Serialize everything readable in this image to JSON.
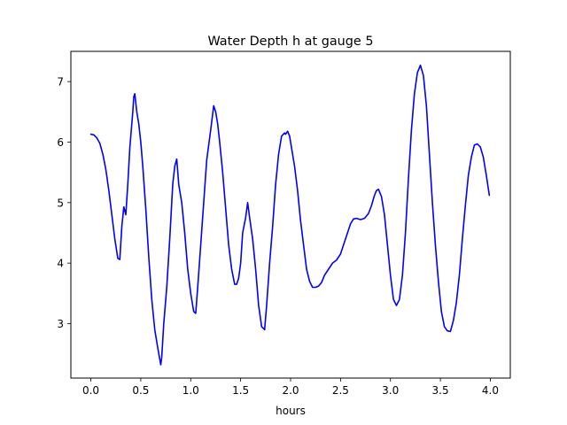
{
  "chart_data": {
    "type": "line",
    "title": "Water Depth h at gauge 5",
    "xlabel": "hours",
    "ylabel": "",
    "xlim": [
      -0.2,
      4.2
    ],
    "ylim": [
      2.1,
      7.5
    ],
    "xticks": [
      0.0,
      0.5,
      1.0,
      1.5,
      2.0,
      2.5,
      3.0,
      3.5,
      4.0
    ],
    "xtick_labels": [
      "0.0",
      "0.5",
      "1.0",
      "1.5",
      "2.0",
      "2.5",
      "3.0",
      "3.5",
      "4.0"
    ],
    "yticks": [
      3,
      4,
      5,
      6,
      7
    ],
    "ytick_labels": [
      "3",
      "4",
      "5",
      "6",
      "7"
    ],
    "grid": false,
    "series": [
      {
        "color": "#0000ff",
        "x": [
          0.0,
          0.03,
          0.06,
          0.09,
          0.12,
          0.15,
          0.18,
          0.21,
          0.24,
          0.27,
          0.29,
          0.31,
          0.33,
          0.35,
          0.37,
          0.39,
          0.42,
          0.43,
          0.44,
          0.46,
          0.48,
          0.5,
          0.52,
          0.55,
          0.58,
          0.61,
          0.64,
          0.67,
          0.7,
          0.71,
          0.73,
          0.76,
          0.79,
          0.82,
          0.84,
          0.86,
          0.88,
          0.91,
          0.94,
          0.97,
          1.0,
          1.03,
          1.05,
          1.07,
          1.1,
          1.13,
          1.16,
          1.2,
          1.23,
          1.25,
          1.27,
          1.29,
          1.32,
          1.35,
          1.38,
          1.41,
          1.44,
          1.46,
          1.48,
          1.5,
          1.52,
          1.55,
          1.57,
          1.59,
          1.62,
          1.65,
          1.68,
          1.71,
          1.74,
          1.76,
          1.79,
          1.82,
          1.85,
          1.88,
          1.91,
          1.94,
          1.95,
          1.97,
          1.99,
          2.01,
          2.04,
          2.07,
          2.1,
          2.13,
          2.16,
          2.19,
          2.22,
          2.25,
          2.28,
          2.31,
          2.34,
          2.38,
          2.42,
          2.46,
          2.5,
          2.53,
          2.57,
          2.6,
          2.63,
          2.66,
          2.7,
          2.74,
          2.78,
          2.81,
          2.84,
          2.86,
          2.88,
          2.91,
          2.94,
          2.97,
          3.0,
          3.03,
          3.06,
          3.09,
          3.12,
          3.15,
          3.18,
          3.21,
          3.24,
          3.27,
          3.3,
          3.33,
          3.36,
          3.39,
          3.42,
          3.45,
          3.48,
          3.51,
          3.54,
          3.57,
          3.6,
          3.63,
          3.66,
          3.69,
          3.72,
          3.75,
          3.78,
          3.81,
          3.84,
          3.87,
          3.9,
          3.93,
          3.96,
          3.99
        ],
        "y": [
          6.13,
          6.12,
          6.07,
          5.98,
          5.8,
          5.55,
          5.2,
          4.8,
          4.4,
          4.08,
          4.06,
          4.6,
          4.93,
          4.8,
          5.3,
          5.9,
          6.5,
          6.75,
          6.8,
          6.5,
          6.3,
          6.0,
          5.6,
          4.9,
          4.1,
          3.4,
          2.9,
          2.6,
          2.32,
          2.45,
          3.0,
          3.6,
          4.4,
          5.3,
          5.6,
          5.72,
          5.3,
          5.0,
          4.5,
          3.9,
          3.5,
          3.2,
          3.17,
          3.6,
          4.3,
          5.0,
          5.7,
          6.2,
          6.6,
          6.5,
          6.3,
          6.0,
          5.5,
          4.9,
          4.3,
          3.9,
          3.65,
          3.65,
          3.75,
          4.0,
          4.5,
          4.75,
          5.0,
          4.75,
          4.4,
          3.9,
          3.3,
          2.95,
          2.9,
          3.3,
          4.0,
          4.6,
          5.3,
          5.8,
          6.1,
          6.15,
          6.13,
          6.18,
          6.1,
          5.9,
          5.6,
          5.2,
          4.7,
          4.3,
          3.9,
          3.7,
          3.6,
          3.6,
          3.62,
          3.68,
          3.8,
          3.9,
          4.0,
          4.05,
          4.15,
          4.3,
          4.5,
          4.65,
          4.73,
          4.74,
          4.72,
          4.74,
          4.82,
          4.95,
          5.12,
          5.2,
          5.22,
          5.1,
          4.8,
          4.3,
          3.8,
          3.4,
          3.3,
          3.4,
          3.8,
          4.5,
          5.4,
          6.2,
          6.8,
          7.15,
          7.27,
          7.1,
          6.6,
          5.8,
          5.0,
          4.3,
          3.7,
          3.2,
          2.95,
          2.88,
          2.87,
          3.05,
          3.35,
          3.8,
          4.4,
          4.95,
          5.45,
          5.75,
          5.95,
          5.97,
          5.92,
          5.75,
          5.45,
          5.12
        ]
      }
    ]
  }
}
